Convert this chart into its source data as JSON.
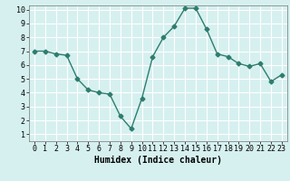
{
  "x": [
    0,
    1,
    2,
    3,
    4,
    5,
    6,
    7,
    8,
    9,
    10,
    11,
    12,
    13,
    14,
    15,
    16,
    17,
    18,
    19,
    20,
    21,
    22,
    23
  ],
  "y": [
    7.0,
    7.0,
    6.8,
    6.7,
    5.0,
    4.2,
    4.0,
    3.9,
    2.3,
    1.4,
    3.6,
    6.6,
    8.0,
    8.8,
    10.1,
    10.1,
    8.6,
    6.8,
    6.6,
    6.1,
    5.9,
    6.1,
    4.8,
    5.3
  ],
  "line_color": "#2e7d6e",
  "marker": "D",
  "marker_size": 2.5,
  "bg_color": "#d6f0f0",
  "grid_color": "#ffffff",
  "xlabel": "Humidex (Indice chaleur)",
  "xlim": [
    -0.5,
    23.5
  ],
  "ylim": [
    0.5,
    10.3
  ],
  "yticks": [
    1,
    2,
    3,
    4,
    5,
    6,
    7,
    8,
    9,
    10
  ],
  "xticks": [
    0,
    1,
    2,
    3,
    4,
    5,
    6,
    7,
    8,
    9,
    10,
    11,
    12,
    13,
    14,
    15,
    16,
    17,
    18,
    19,
    20,
    21,
    22,
    23
  ],
  "xlabel_fontsize": 7,
  "tick_fontsize": 6,
  "line_width": 1.0
}
